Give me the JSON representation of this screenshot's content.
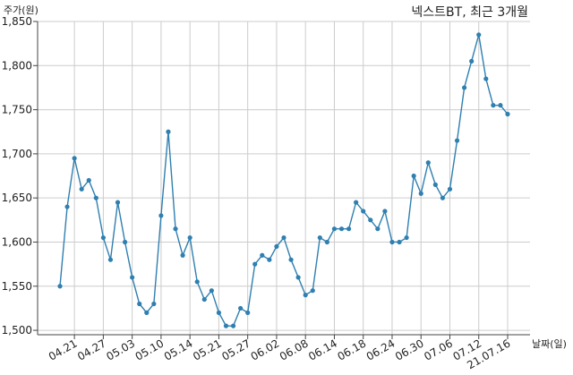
{
  "chart_data": {
    "type": "line",
    "title": "넥스트BT, 최근 3개월",
    "xlabel": "날짜(일)",
    "ylabel": "주가(원)",
    "ylim": [
      1495,
      1850
    ],
    "yticks": [
      1500,
      1550,
      1600,
      1650,
      1700,
      1750,
      1800,
      1850
    ],
    "ytick_labels": [
      "1,500",
      "1,550",
      "1,600",
      "1,650",
      "1,700",
      "1,750",
      "1,800",
      "1,850"
    ],
    "xtick_labels": [
      {
        "label": "04.21",
        "index": 2
      },
      {
        "label": "04.27",
        "index": 6
      },
      {
        "label": "05.03",
        "index": 10
      },
      {
        "label": "05.10",
        "index": 14
      },
      {
        "label": "05.14",
        "index": 18
      },
      {
        "label": "05.21",
        "index": 22
      },
      {
        "label": "05.27",
        "index": 26
      },
      {
        "label": "06.02",
        "index": 30
      },
      {
        "label": "06.08",
        "index": 34
      },
      {
        "label": "06.14",
        "index": 38
      },
      {
        "label": "06.18",
        "index": 42
      },
      {
        "label": "06.24",
        "index": 46
      },
      {
        "label": "06.30",
        "index": 50
      },
      {
        "label": "07.06",
        "index": 54
      },
      {
        "label": "07.12",
        "index": 58
      },
      {
        "label": "21.07.16",
        "index": 62
      }
    ],
    "grid": true,
    "color": "#2f7fb0",
    "values": [
      1550,
      1640,
      1695,
      1660,
      1670,
      1650,
      1605,
      1580,
      1645,
      1600,
      1560,
      1530,
      1520,
      1530,
      1630,
      1725,
      1615,
      1585,
      1605,
      1555,
      1535,
      1545,
      1520,
      1505,
      1505,
      1525,
      1520,
      1575,
      1585,
      1580,
      1595,
      1605,
      1580,
      1560,
      1540,
      1545,
      1605,
      1600,
      1615,
      1615,
      1615,
      1645,
      1635,
      1625,
      1615,
      1635,
      1600,
      1600,
      1605,
      1675,
      1655,
      1690,
      1665,
      1650,
      1660,
      1715,
      1775,
      1805,
      1835,
      1785,
      1755,
      1755,
      1745
    ]
  }
}
